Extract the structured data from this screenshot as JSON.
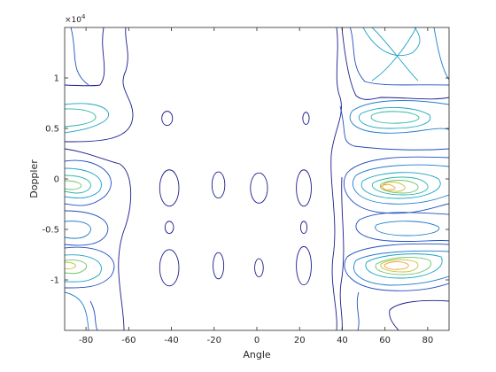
{
  "chart_data": {
    "type": "contour",
    "title": "",
    "xlabel": "Angle",
    "ylabel": "Doppler",
    "xlim": [
      -90,
      90
    ],
    "ylim": [
      -15000,
      15000
    ],
    "x_ticks": [
      -80,
      -60,
      -40,
      -20,
      0,
      20,
      40,
      60,
      80
    ],
    "x_tick_labels": [
      "-80",
      "-60",
      "-40",
      "-20",
      "0",
      "20",
      "40",
      "60",
      "80"
    ],
    "y_ticks": [
      -10000,
      -5000,
      0,
      5000,
      10000
    ],
    "y_tick_labels": [
      "-1",
      "-0.5",
      "0",
      "0.5",
      "1"
    ],
    "y_exponent_label": "×10",
    "y_exponent_power": "4",
    "grid": false,
    "colormap": "parula-like",
    "level_colors": [
      "#1c1c8f",
      "#1f4fbf",
      "#1e7ecc",
      "#1aa2c6",
      "#2ab7a5",
      "#6fc46c",
      "#c4c23a",
      "#f0a52a"
    ],
    "islands": [
      {
        "x": -42,
        "y": 6000,
        "rx": 2.5,
        "ry": 700
      },
      {
        "x": 23,
        "y": 6000,
        "rx": 1.5,
        "ry": 600
      },
      {
        "x": -41,
        "y": -900,
        "rx": 4.5,
        "ry": 1800
      },
      {
        "x": -18,
        "y": -600,
        "rx": 3.0,
        "ry": 1300
      },
      {
        "x": 1,
        "y": -900,
        "rx": 4.0,
        "ry": 1500
      },
      {
        "x": 22,
        "y": -900,
        "rx": 3.5,
        "ry": 1800
      },
      {
        "x": -41,
        "y": -4800,
        "rx": 2.0,
        "ry": 600
      },
      {
        "x": 22,
        "y": -4800,
        "rx": 1.5,
        "ry": 600
      },
      {
        "x": -41,
        "y": -8800,
        "rx": 4.5,
        "ry": 1800
      },
      {
        "x": -18,
        "y": -8600,
        "rx": 2.5,
        "ry": 1300
      },
      {
        "x": 1,
        "y": -8800,
        "rx": 2.0,
        "ry": 900
      },
      {
        "x": 22,
        "y": -8600,
        "rx": 3.5,
        "ry": 1900
      }
    ]
  }
}
